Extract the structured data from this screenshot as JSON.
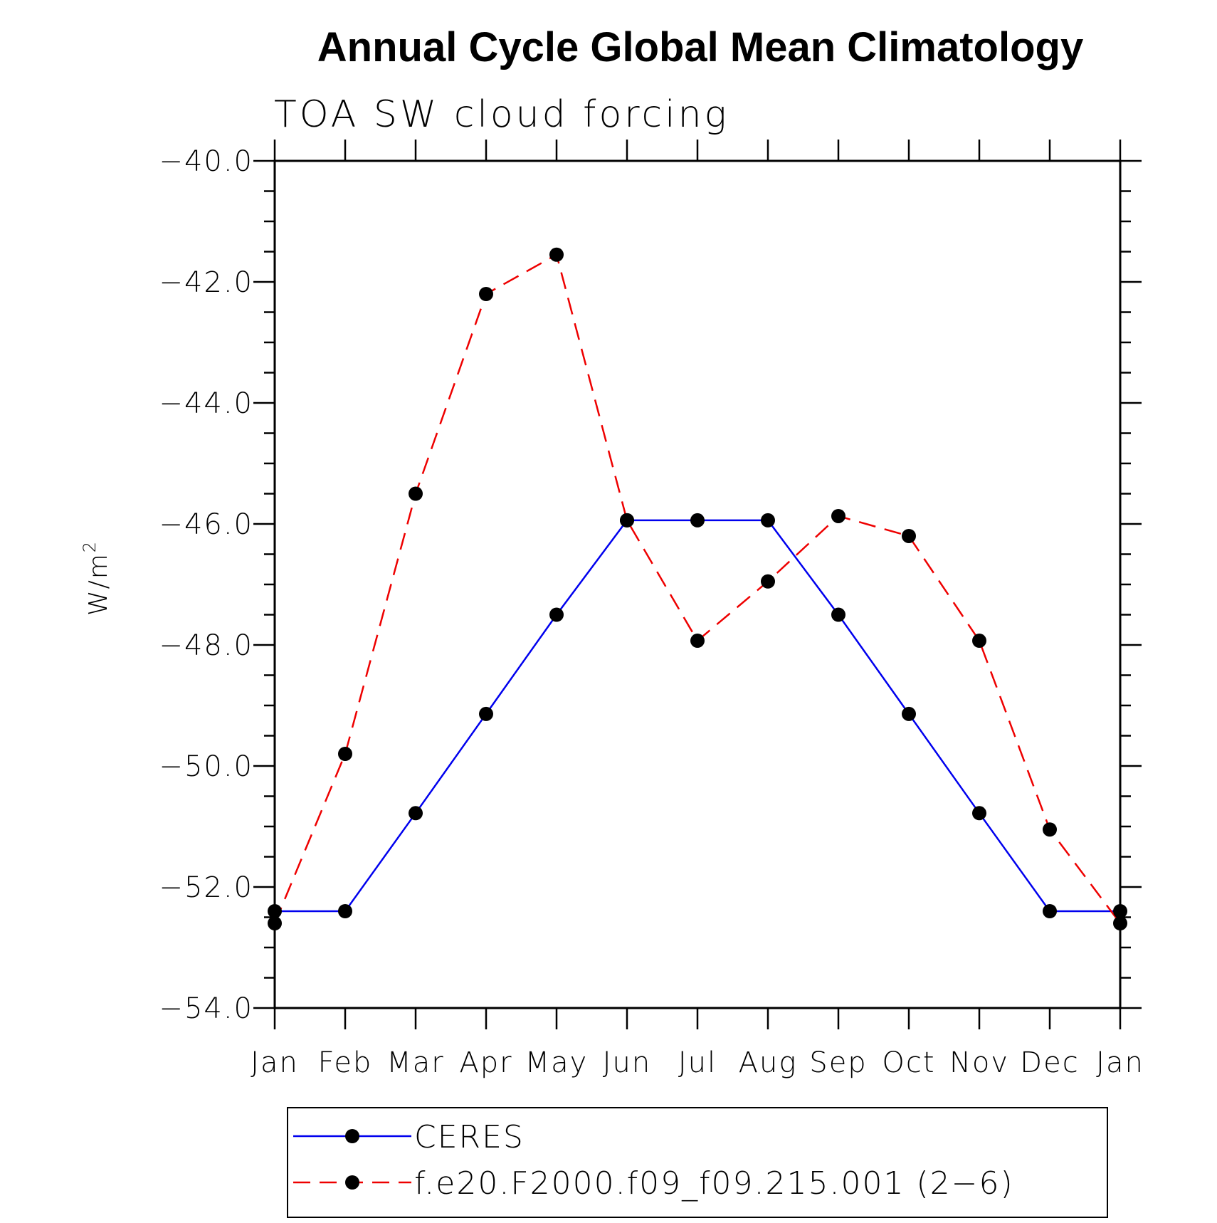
{
  "chart_data": {
    "type": "line",
    "title": "Annual Cycle Global Mean Climatology",
    "subtitle": "TOA SW cloud forcing",
    "ylabel": "W/m",
    "ylabel_sup": "2",
    "xlabel": "",
    "categories": [
      "Jan",
      "Feb",
      "Mar",
      "Apr",
      "May",
      "Jun",
      "Jul",
      "Aug",
      "Sep",
      "Oct",
      "Nov",
      "Dec",
      "Jan"
    ],
    "ylim": [
      -54.0,
      -40.0
    ],
    "yticks": [
      -40.0,
      -42.0,
      -44.0,
      -46.0,
      -48.0,
      -50.0,
      -52.0,
      -54.0
    ],
    "ytick_labels": [
      "−40.0",
      "−42.0",
      "−44.0",
      "−46.0",
      "−48.0",
      "−50.0",
      "−52.0",
      "−54.0"
    ],
    "grid": false,
    "legend_position": "bottom",
    "series": [
      {
        "name": "CERES",
        "color": "#0000ee",
        "dash": "solid",
        "values": [
          -52.4,
          -52.4,
          -50.78,
          -49.14,
          -47.5,
          -45.94,
          -45.94,
          -45.94,
          -47.5,
          -49.14,
          -50.78,
          -52.4,
          -52.4
        ]
      },
      {
        "name": "f.e20.F2000.f09_f09.215.001 (2−6)",
        "color": "#ee0000",
        "dash": "dashed",
        "values": [
          -52.6,
          -49.8,
          -45.5,
          -42.2,
          -41.55,
          -45.94,
          -47.93,
          -46.95,
          -45.87,
          -46.2,
          -47.93,
          -51.05,
          -52.6
        ]
      }
    ]
  }
}
